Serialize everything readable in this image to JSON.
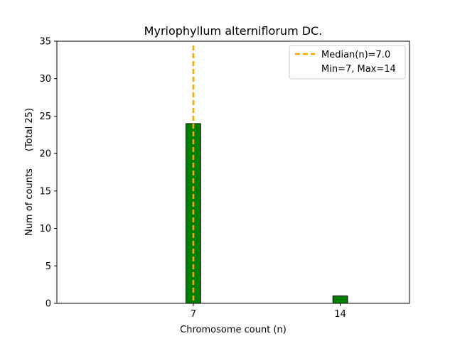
{
  "chart_data": {
    "type": "bar",
    "title": "Myriophyllum alterniflorum DC.",
    "xlabel": "Chromosome count (n)",
    "ylabel": "Num of counts",
    "ylabel_note": "(Total 25)",
    "categories": [
      "7",
      "14"
    ],
    "x": [
      7,
      14
    ],
    "values": [
      24,
      1
    ],
    "xlim": [
      0.5,
      17.3
    ],
    "ylim": [
      0,
      35
    ],
    "yticks": [
      0,
      5,
      10,
      15,
      20,
      25,
      30,
      35
    ],
    "xticks": [
      7,
      14
    ],
    "bar_color": "#008000",
    "bar_edge_color": "#000000",
    "median": 7.0,
    "median_color": "#FFA500",
    "legend": {
      "placement": "top-right",
      "entries": [
        "Median(n)=7.0",
        "Min=7, Max=14"
      ]
    },
    "grid": false
  }
}
